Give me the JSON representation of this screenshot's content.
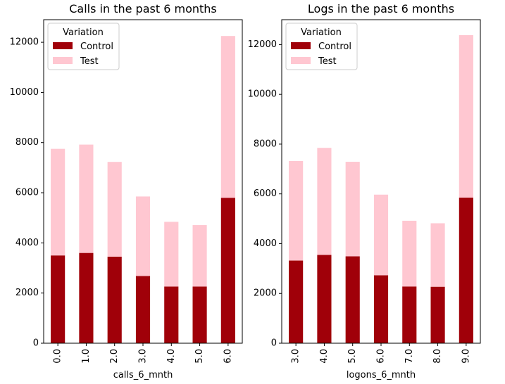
{
  "legend_title": "Variation",
  "chart_data": [
    {
      "type": "bar",
      "stacked": true,
      "title": "Calls in the past 6 months",
      "xlabel": "calls_6_mnth",
      "ylabel": "",
      "categories": [
        "0.0",
        "1.0",
        "2.0",
        "3.0",
        "4.0",
        "5.0",
        "6.0"
      ],
      "series": [
        {
          "name": "Control",
          "color": "#a00009",
          "values": [
            3500,
            3600,
            3450,
            2680,
            2260,
            2260,
            5800
          ]
        },
        {
          "name": "Test",
          "color": "#ffc7d1",
          "values": [
            4250,
            4320,
            3780,
            3170,
            2580,
            2450,
            6450
          ]
        }
      ],
      "ylim": [
        0,
        12900
      ],
      "yticks": [
        0,
        2000,
        4000,
        6000,
        8000,
        10000,
        12000
      ],
      "legend": "upper-left",
      "grid": false
    },
    {
      "type": "bar",
      "stacked": true,
      "title": "Logs in the past 6 months",
      "xlabel": "logons_6_mnth",
      "ylabel": "",
      "categories": [
        "3.0",
        "4.0",
        "5.0",
        "6.0",
        "7.0",
        "8.0",
        "9.0"
      ],
      "series": [
        {
          "name": "Control",
          "color": "#a00009",
          "values": [
            3320,
            3550,
            3490,
            2730,
            2280,
            2270,
            5850
          ]
        },
        {
          "name": "Test",
          "color": "#ffc7d1",
          "values": [
            4000,
            4300,
            3800,
            3240,
            2640,
            2550,
            6530
          ]
        }
      ],
      "ylim": [
        0,
        13000
      ],
      "yticks": [
        0,
        2000,
        4000,
        6000,
        8000,
        10000,
        12000
      ],
      "legend": "upper-left",
      "grid": false
    }
  ]
}
